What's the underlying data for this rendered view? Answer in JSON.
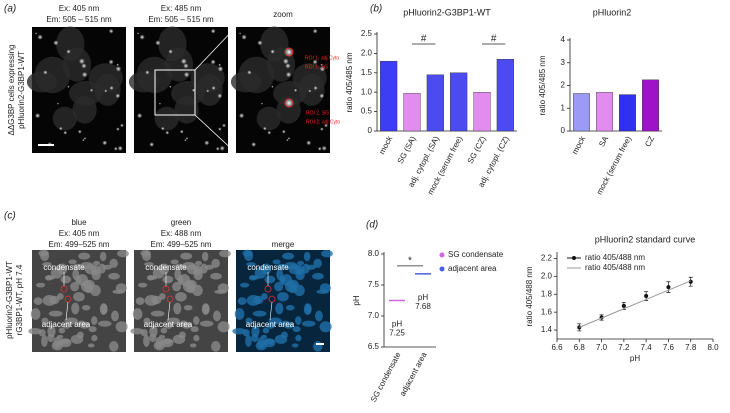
{
  "panel_a": {
    "label": "(a)",
    "side_label": [
      "ΔΔG3BP cells expressing",
      "pHluorin2-G3BP1-WT"
    ],
    "images": [
      {
        "ex": "Ex: 405 nm",
        "em": "Em: 505 – 515 nm"
      },
      {
        "ex": "Ex: 485 nm",
        "em": "Em: 505 – 515 nm"
      },
      {
        "title": "zoom"
      }
    ],
    "roi_labels": [
      "ROI 1, adj Cyto",
      "ROI 1, SG",
      "ROI 2, SG",
      "ROI 2, adj Cyto"
    ]
  },
  "panel_b": {
    "label": "(b)"
  },
  "panel_c": {
    "label": "(c)",
    "side_label": [
      "pHluorin2-G3BP1-WT",
      "rG3BP1-WT, pH 7.4"
    ],
    "images": [
      {
        "name": "blue",
        "ex": "Ex: 405 nm",
        "em": "Em: 499–525 nm"
      },
      {
        "name": "green",
        "ex": "Ex: 488 nm",
        "em": "Em: 499–525 nm"
      },
      {
        "name": "merge"
      }
    ],
    "annotations": [
      "condensate",
      "adjacent area"
    ]
  },
  "panel_d": {
    "label": "(d)"
  },
  "chart_data": [
    {
      "type": "bar",
      "title": "pHluorin2-G3BP1-WT",
      "y_label": "ratio 405/485 nm",
      "categories": [
        "mock",
        "SG (SA)",
        "adj. cytopl. (SA)",
        "mock (serum free)",
        "SG (CZ)",
        "adj. cytopl. (CZ)"
      ],
      "values": [
        1.8,
        0.97,
        1.45,
        1.5,
        1.0,
        1.85
      ],
      "colors": [
        "#3d3df5",
        "#e38cf0",
        "#4b4bf0",
        "#4b4bf0",
        "#e38cf0",
        "#4b4bf0"
      ],
      "ylim": [
        0,
        2.5
      ],
      "yticks": [
        0,
        0.5,
        {
          "value": 1,
          "label": "1.0"
        },
        1.5,
        {
          "value": 2,
          "label": "2.0"
        },
        2.5
      ],
      "annotations": [
        {
          "text": "#",
          "between": [
            "SG (SA)",
            "adj. cytopl. (SA)"
          ]
        },
        {
          "text": "#",
          "between": [
            "SG (CZ)",
            "adj. cytopl. (CZ)"
          ]
        }
      ]
    },
    {
      "type": "bar",
      "title": "pHluorin2",
      "y_label": "ratio 405/485 nm",
      "categories": [
        "mock",
        "SA",
        "mock (serum free)",
        "CZ"
      ],
      "values": [
        1.65,
        1.7,
        1.6,
        2.25
      ],
      "colors": [
        "#9b9bf5",
        "#e38cf0",
        "#3030f0",
        "#9e12c8"
      ],
      "ylim": [
        0,
        4
      ],
      "yticks": [
        0,
        1,
        2,
        3,
        4
      ]
    },
    {
      "type": "scatter",
      "y_label": "pH",
      "categories": [
        "SG condensate",
        "adjacent area"
      ],
      "values": [
        7.25,
        7.68
      ],
      "colors": [
        "#cc66dd",
        "#4a5fe0"
      ],
      "point_note": "pH",
      "ylim": [
        6.5,
        8.0
      ],
      "yticks": [
        6.5,
        {
          "value": 7,
          "label": "7.0"
        },
        7.5,
        {
          "value": 8,
          "label": "8.0"
        }
      ],
      "annotations": [
        {
          "text": "*",
          "between": [
            "SG condensate",
            "adjacent area"
          ]
        }
      ]
    },
    {
      "type": "line",
      "title": "pHluorin2 standard curve",
      "x_label": "pH",
      "y_label": "ratio 405/488 nm",
      "series": [
        {
          "name": "ratio 405/488 nm",
          "color": "#111111",
          "style": "points",
          "x": [
            6.8,
            7.0,
            7.2,
            7.4,
            7.6,
            7.8
          ],
          "values": [
            1.43,
            1.54,
            1.67,
            1.78,
            1.88,
            1.94
          ],
          "errors": [
            0.04,
            0.03,
            0.04,
            0.05,
            0.06,
            0.05
          ]
        },
        {
          "name": "ratio 405/488 nm",
          "color": "#999999",
          "style": "line",
          "x": [
            6.8,
            7.8
          ],
          "values": [
            1.43,
            1.95
          ]
        }
      ],
      "xlim": [
        6.6,
        8.0
      ],
      "xticks": [
        6.6,
        6.8,
        {
          "value": 7,
          "label": "7.0"
        },
        7.2,
        7.4,
        7.6,
        7.8,
        {
          "value": 8,
          "label": "8.0"
        }
      ],
      "ylim": [
        1.3,
        2.25
      ],
      "yticks": [
        1.4,
        1.6,
        1.8,
        {
          "value": 2,
          "label": "2.0"
        },
        2.2
      ]
    }
  ]
}
